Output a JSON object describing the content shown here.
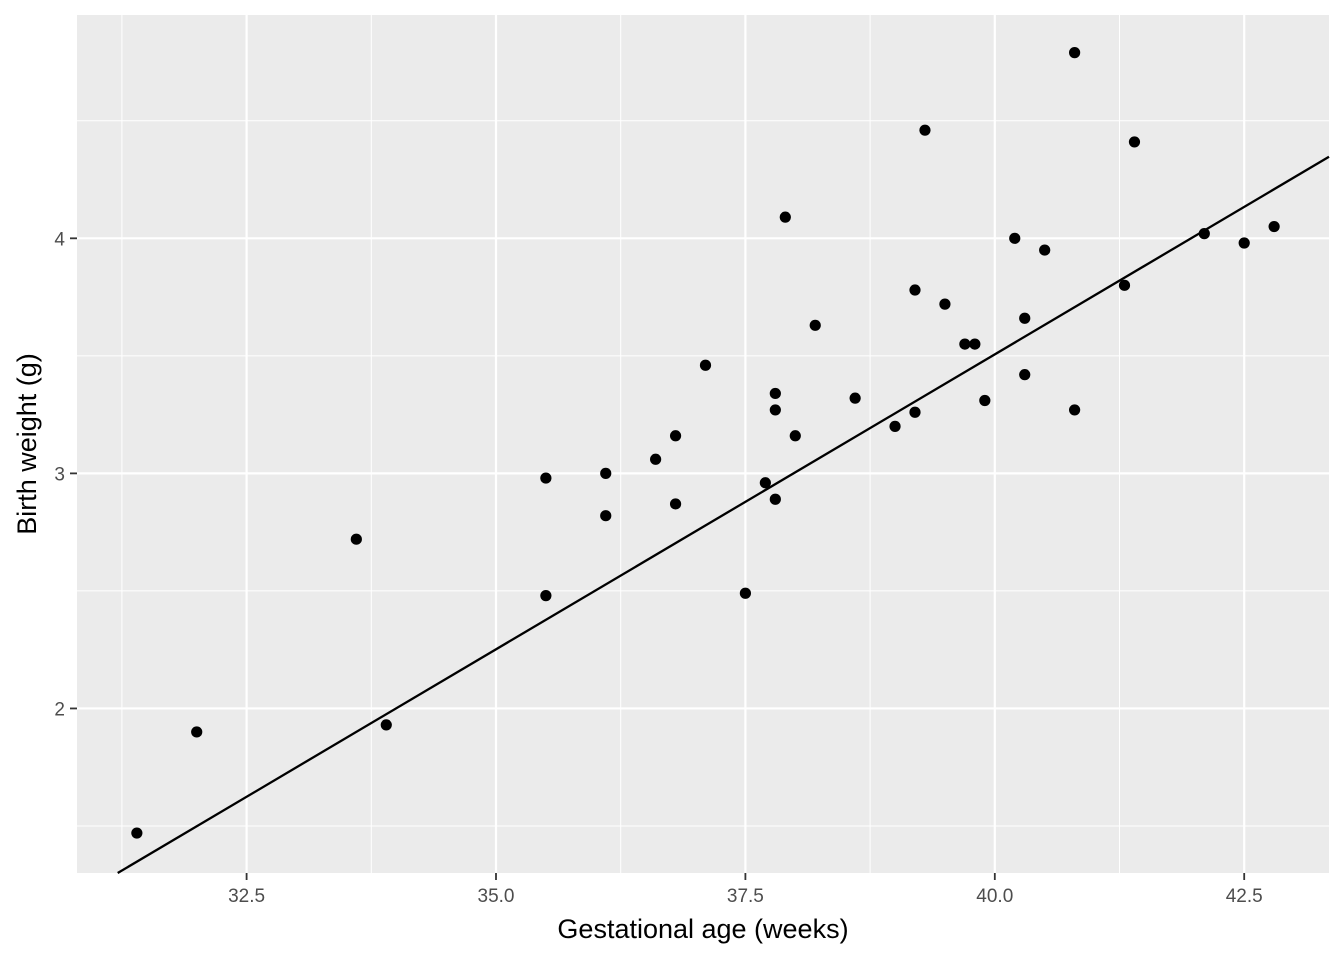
{
  "chart_data": {
    "type": "scatter",
    "title": "",
    "xlabel": "Gestational age (weeks)",
    "ylabel": "Birth weight (g)",
    "xlim": [
      30.8,
      43.35
    ],
    "ylim": [
      1.3,
      4.95
    ],
    "x_ticks": [
      {
        "value": 32.5,
        "label": "32.5"
      },
      {
        "value": 35.0,
        "label": "35.0"
      },
      {
        "value": 37.5,
        "label": "37.5"
      },
      {
        "value": 40.0,
        "label": "40.0"
      },
      {
        "value": 42.5,
        "label": "42.5"
      }
    ],
    "y_ticks": [
      {
        "value": 2,
        "label": "2"
      },
      {
        "value": 3,
        "label": "3"
      },
      {
        "value": 4,
        "label": "4"
      }
    ],
    "grid": true,
    "legend": "none",
    "colors": {
      "panel_background": "#ebebeb",
      "grid": "#ffffff",
      "points": "#000000",
      "fit_line": "#000000"
    },
    "points": [
      {
        "x": 31.4,
        "y": 1.47
      },
      {
        "x": 32.0,
        "y": 1.9
      },
      {
        "x": 33.6,
        "y": 2.72
      },
      {
        "x": 33.9,
        "y": 1.93
      },
      {
        "x": 35.5,
        "y": 2.98
      },
      {
        "x": 35.5,
        "y": 2.48
      },
      {
        "x": 36.1,
        "y": 3.0
      },
      {
        "x": 36.1,
        "y": 2.82
      },
      {
        "x": 36.6,
        "y": 3.06
      },
      {
        "x": 36.8,
        "y": 3.16
      },
      {
        "x": 36.8,
        "y": 2.87
      },
      {
        "x": 37.1,
        "y": 3.46
      },
      {
        "x": 37.5,
        "y": 2.49
      },
      {
        "x": 37.7,
        "y": 2.96
      },
      {
        "x": 37.8,
        "y": 3.34
      },
      {
        "x": 37.8,
        "y": 3.27
      },
      {
        "x": 37.8,
        "y": 2.89
      },
      {
        "x": 37.9,
        "y": 4.09
      },
      {
        "x": 38.0,
        "y": 3.16
      },
      {
        "x": 38.2,
        "y": 3.63
      },
      {
        "x": 38.6,
        "y": 3.32
      },
      {
        "x": 39.0,
        "y": 3.2
      },
      {
        "x": 39.2,
        "y": 3.78
      },
      {
        "x": 39.2,
        "y": 3.26
      },
      {
        "x": 39.3,
        "y": 4.46
      },
      {
        "x": 39.5,
        "y": 3.72
      },
      {
        "x": 39.7,
        "y": 3.55
      },
      {
        "x": 39.8,
        "y": 3.55
      },
      {
        "x": 39.9,
        "y": 3.31
      },
      {
        "x": 40.2,
        "y": 4.0
      },
      {
        "x": 40.3,
        "y": 3.66
      },
      {
        "x": 40.3,
        "y": 3.42
      },
      {
        "x": 40.5,
        "y": 3.95
      },
      {
        "x": 40.8,
        "y": 4.79
      },
      {
        "x": 40.8,
        "y": 3.27
      },
      {
        "x": 41.3,
        "y": 3.8
      },
      {
        "x": 41.4,
        "y": 4.41
      },
      {
        "x": 42.1,
        "y": 4.02
      },
      {
        "x": 42.5,
        "y": 3.98
      },
      {
        "x": 42.8,
        "y": 4.05
      }
    ],
    "fit_line": {
      "x": [
        31.2,
        43.35
      ],
      "y": [
        1.298,
        4.347
      ]
    }
  }
}
